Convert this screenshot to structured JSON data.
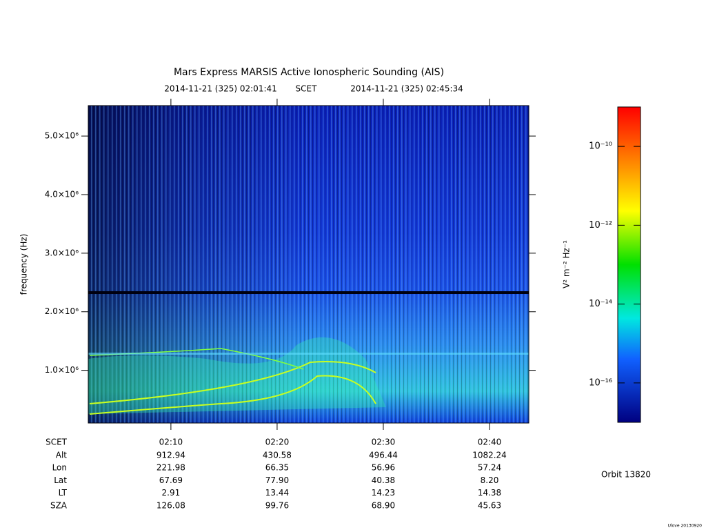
{
  "chart_data": {
    "type": "spectrogram",
    "title": "Mars Express MARSIS Active Ionospheric Sounding (AIS)",
    "subtitle": {
      "start": "2014-11-21 (325) 02:01:41",
      "frame": "SCET",
      "end": "2014-11-21 (325) 02:45:34"
    },
    "y_label": "frequency (Hz)",
    "ylim": [
      100000,
      5520000
    ],
    "yticks": [
      {
        "value": 1000000,
        "label": "1.0×10⁶"
      },
      {
        "value": 2000000,
        "label": "2.0×10⁶"
      },
      {
        "value": 3000000,
        "label": "3.0×10⁶"
      },
      {
        "value": 4000000,
        "label": "4.0×10⁶"
      },
      {
        "value": 5000000,
        "label": "5.0×10⁶"
      }
    ],
    "xlim": [
      "02:02:13",
      "02:43:42"
    ],
    "xticks": [
      "02:10",
      "02:20",
      "02:30",
      "02:40"
    ],
    "ephemeris": {
      "time_label": "SCET",
      "rows": [
        {
          "label": "Alt",
          "values": [
            "912.94",
            "430.58",
            "496.44",
            "1082.24"
          ]
        },
        {
          "label": "Lon",
          "values": [
            "221.98",
            "66.35",
            "56.96",
            "57.24"
          ]
        },
        {
          "label": "Lat",
          "values": [
            "67.69",
            "77.90",
            "40.38",
            "8.20"
          ]
        },
        {
          "label": "LT",
          "values": [
            "2.91",
            "13.44",
            "14.23",
            "14.38"
          ]
        },
        {
          "label": "SZA",
          "values": [
            "126.08",
            "99.76",
            "68.90",
            "45.63"
          ]
        }
      ]
    },
    "colorbar": {
      "label": "V² m⁻² Hz⁻¹",
      "log_scale": true,
      "lim": [
        1e-17,
        1e-09
      ],
      "ticks": [
        {
          "value": 1e-10,
          "label": "10⁻¹⁰"
        },
        {
          "value": 1e-12,
          "label": "10⁻¹²"
        },
        {
          "value": 1e-14,
          "label": "10⁻¹⁴"
        },
        {
          "value": 1e-16,
          "label": "10⁻¹⁶"
        }
      ]
    },
    "orbit": "Orbit 13820",
    "footer": "Ulove 20130920"
  }
}
